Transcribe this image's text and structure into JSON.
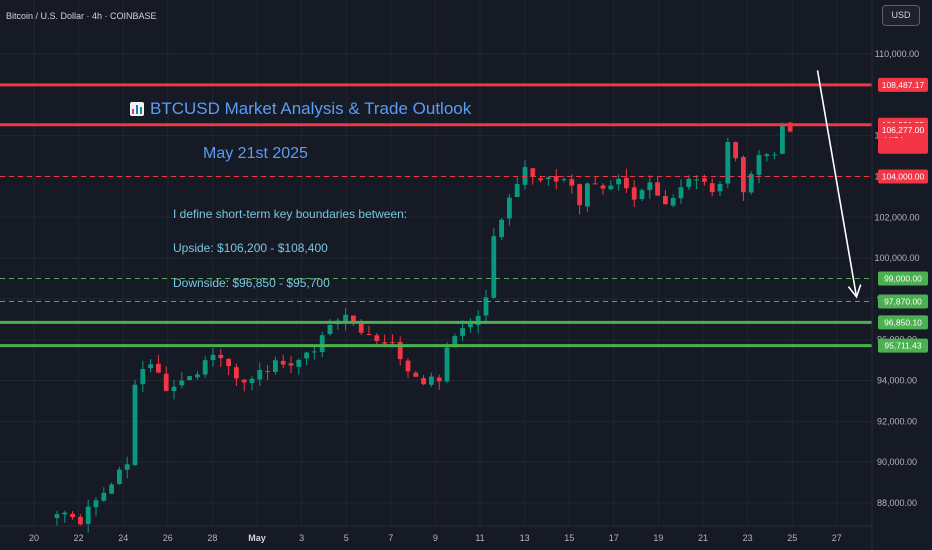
{
  "header": {
    "title": "Bitcoin / U.S. Dollar · 4h · COINBASE",
    "currency_button": "USD"
  },
  "annotations": {
    "title": "BTCUSD Market Analysis & Trade Outlook",
    "date": "May 21st 2025",
    "line1": "I define short-term key boundaries between:",
    "line2": "Upside: $106,200 - $108,400",
    "line3": "Downside: $96,850 - $95,700",
    "icon": "bar-chart-icon"
  },
  "chart_data": {
    "type": "candlestick",
    "symbol": "BTCUSD",
    "interval": "4h",
    "exchange": "COINBASE",
    "ylim": [
      86000,
      112000
    ],
    "y_ticks": [
      "88,000.00",
      "90,000.00",
      "92,000.00",
      "94,000.00",
      "96,000.00",
      "98,000.00",
      "100,000.00",
      "102,000.00",
      "104,000.00",
      "106,000.00",
      "110,000.00"
    ],
    "x_ticks": [
      "20",
      "22",
      "24",
      "26",
      "28",
      "May",
      "3",
      "5",
      "7",
      "9",
      "11",
      "13",
      "15",
      "17",
      "19",
      "21",
      "23",
      "25",
      "27"
    ],
    "grid": true,
    "colors": {
      "up": "#089981",
      "down": "#f23645",
      "background": "#161a25",
      "grid": "#222632",
      "resistance": "#f23645",
      "support": "#4caf50",
      "arrow": "#ffffff",
      "annotation_title": "#5b9cf6",
      "annotation_text": "#7ac7e0"
    },
    "price_path": [
      [
        0,
        87500
      ],
      [
        3,
        87200
      ],
      [
        6,
        88600
      ],
      [
        9,
        89800
      ],
      [
        10,
        94000
      ],
      [
        12,
        94800
      ],
      [
        14,
        93500
      ],
      [
        16,
        93800
      ],
      [
        18,
        94400
      ],
      [
        20,
        95200
      ],
      [
        22,
        94600
      ],
      [
        24,
        94100
      ],
      [
        26,
        94300
      ],
      [
        28,
        94900
      ],
      [
        30,
        94600
      ],
      [
        33,
        95400
      ],
      [
        35,
        96700
      ],
      [
        37,
        97100
      ],
      [
        39,
        96500
      ],
      [
        41,
        96000
      ],
      [
        43,
        95800
      ],
      [
        45,
        94500
      ],
      [
        47,
        93800
      ],
      [
        49,
        94200
      ],
      [
        50,
        95500
      ],
      [
        52,
        96800
      ],
      [
        54,
        97100
      ],
      [
        55,
        98000
      ],
      [
        56,
        101200
      ],
      [
        58,
        103000
      ],
      [
        60,
        104300
      ],
      [
        62,
        103600
      ],
      [
        64,
        103900
      ],
      [
        66,
        103500
      ],
      [
        67,
        102600
      ],
      [
        68,
        103700
      ],
      [
        70,
        103300
      ],
      [
        72,
        104000
      ],
      [
        74,
        102800
      ],
      [
        76,
        103900
      ],
      [
        78,
        102500
      ],
      [
        80,
        103500
      ],
      [
        82,
        103900
      ],
      [
        84,
        103100
      ],
      [
        85,
        103600
      ],
      [
        86,
        105800
      ],
      [
        87,
        104900
      ],
      [
        88,
        103300
      ],
      [
        89,
        104300
      ],
      [
        90,
        105200
      ],
      [
        92,
        104900
      ],
      [
        93,
        106700
      ],
      [
        94,
        106200
      ]
    ],
    "levels": [
      {
        "value": 108487.17,
        "label": "108,487.17",
        "style": "solid",
        "color": "#f23645",
        "kind": "resistance"
      },
      {
        "value": 106531.55,
        "label": "106,531.55",
        "style": "solid",
        "color": "#f23645",
        "kind": "resistance",
        "countdown": "44:54"
      },
      {
        "value": 104000.0,
        "label": "104,000.00",
        "style": "dashed",
        "color": "#f23645",
        "kind": "resistance"
      },
      {
        "value": 99000.0,
        "label": "99,000.00",
        "style": "dashed",
        "color": "#4caf50",
        "kind": "support"
      },
      {
        "value": 97870.0,
        "label": "97,870.00",
        "style": "dashed",
        "color": "#4caf50",
        "kind": "support"
      },
      {
        "value": 96850.1,
        "label": "96,850.10",
        "style": "solid",
        "color": "#4caf50",
        "kind": "support"
      },
      {
        "value": 95711.43,
        "label": "95,711.43",
        "style": "solid",
        "color": "#4caf50",
        "kind": "support"
      }
    ],
    "extra_price_label": {
      "value": 106277.0,
      "label": "106,277.00",
      "color": "#f23645"
    },
    "arrow": {
      "from": [
        97.5,
        109200
      ],
      "to": [
        102.5,
        98100
      ]
    }
  }
}
